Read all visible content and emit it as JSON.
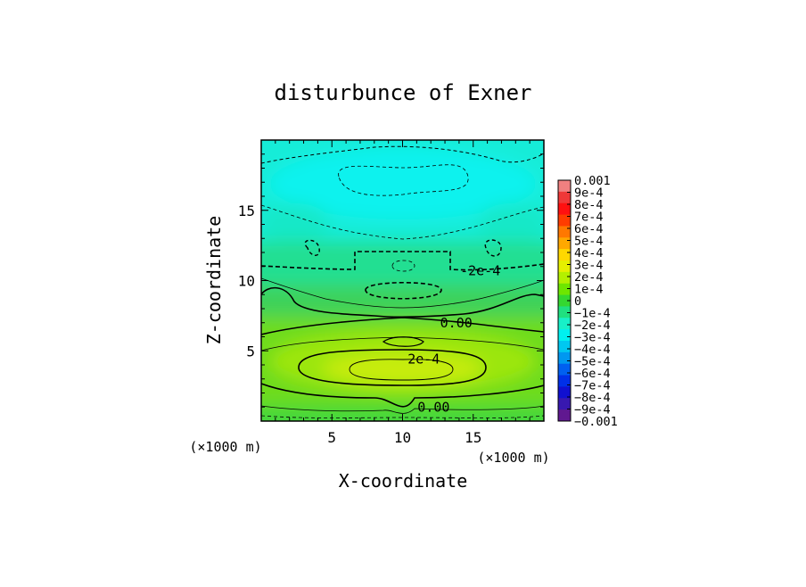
{
  "chart_data": {
    "type": "heatmap",
    "title": "disturbunce of Exner",
    "xlabel": "X-coordinate",
    "ylabel": "Z-coordinate",
    "xunit_upper": "(×1000 m)",
    "xunit_lower": "(×1000 m)",
    "xlim": [
      0,
      20
    ],
    "ylim": [
      0,
      20
    ],
    "xticks": [
      "5",
      "10",
      "15"
    ],
    "xtick_values": [
      5,
      10,
      15
    ],
    "yticks": [
      "5",
      "10",
      "15"
    ],
    "ytick_values": [
      5,
      10,
      15
    ],
    "colorbar": {
      "min": -0.001,
      "max": 0.001,
      "labels": [
        "0.001",
        "9e-4",
        "8e-4",
        "7e-4",
        "6e-4",
        "5e-4",
        "4e-4",
        "3e-4",
        "2e-4",
        "1e-4",
        "0",
        "-1e-4",
        "-2e-4",
        "-3e-4",
        "-4e-4",
        "-5e-4",
        "-6e-4",
        "-7e-4",
        "-8e-4",
        "-9e-4",
        "-0.001"
      ],
      "colors": [
        "#f08080",
        "#f03838",
        "#ff1010",
        "#ff3c00",
        "#ff7800",
        "#ffa800",
        "#ffd800",
        "#e6f000",
        "#b4f000",
        "#6ee600",
        "#34d830",
        "#20e080",
        "#18f0c8",
        "#00f0f0",
        "#00c8f0",
        "#0098f0",
        "#0060f0",
        "#0030e8",
        "#1010d0",
        "#3818b0",
        "#601890"
      ]
    },
    "contour_labels": [
      {
        "text": "-2e-4",
        "x": 15.5,
        "y": 10.7
      },
      {
        "text": "0.00",
        "x": 13.8,
        "y": 7.0
      },
      {
        "text": "2e-4",
        "x": 11.5,
        "y": 4.4
      },
      {
        "text": "0.00",
        "x": 12.2,
        "y": 1.0
      }
    ]
  }
}
